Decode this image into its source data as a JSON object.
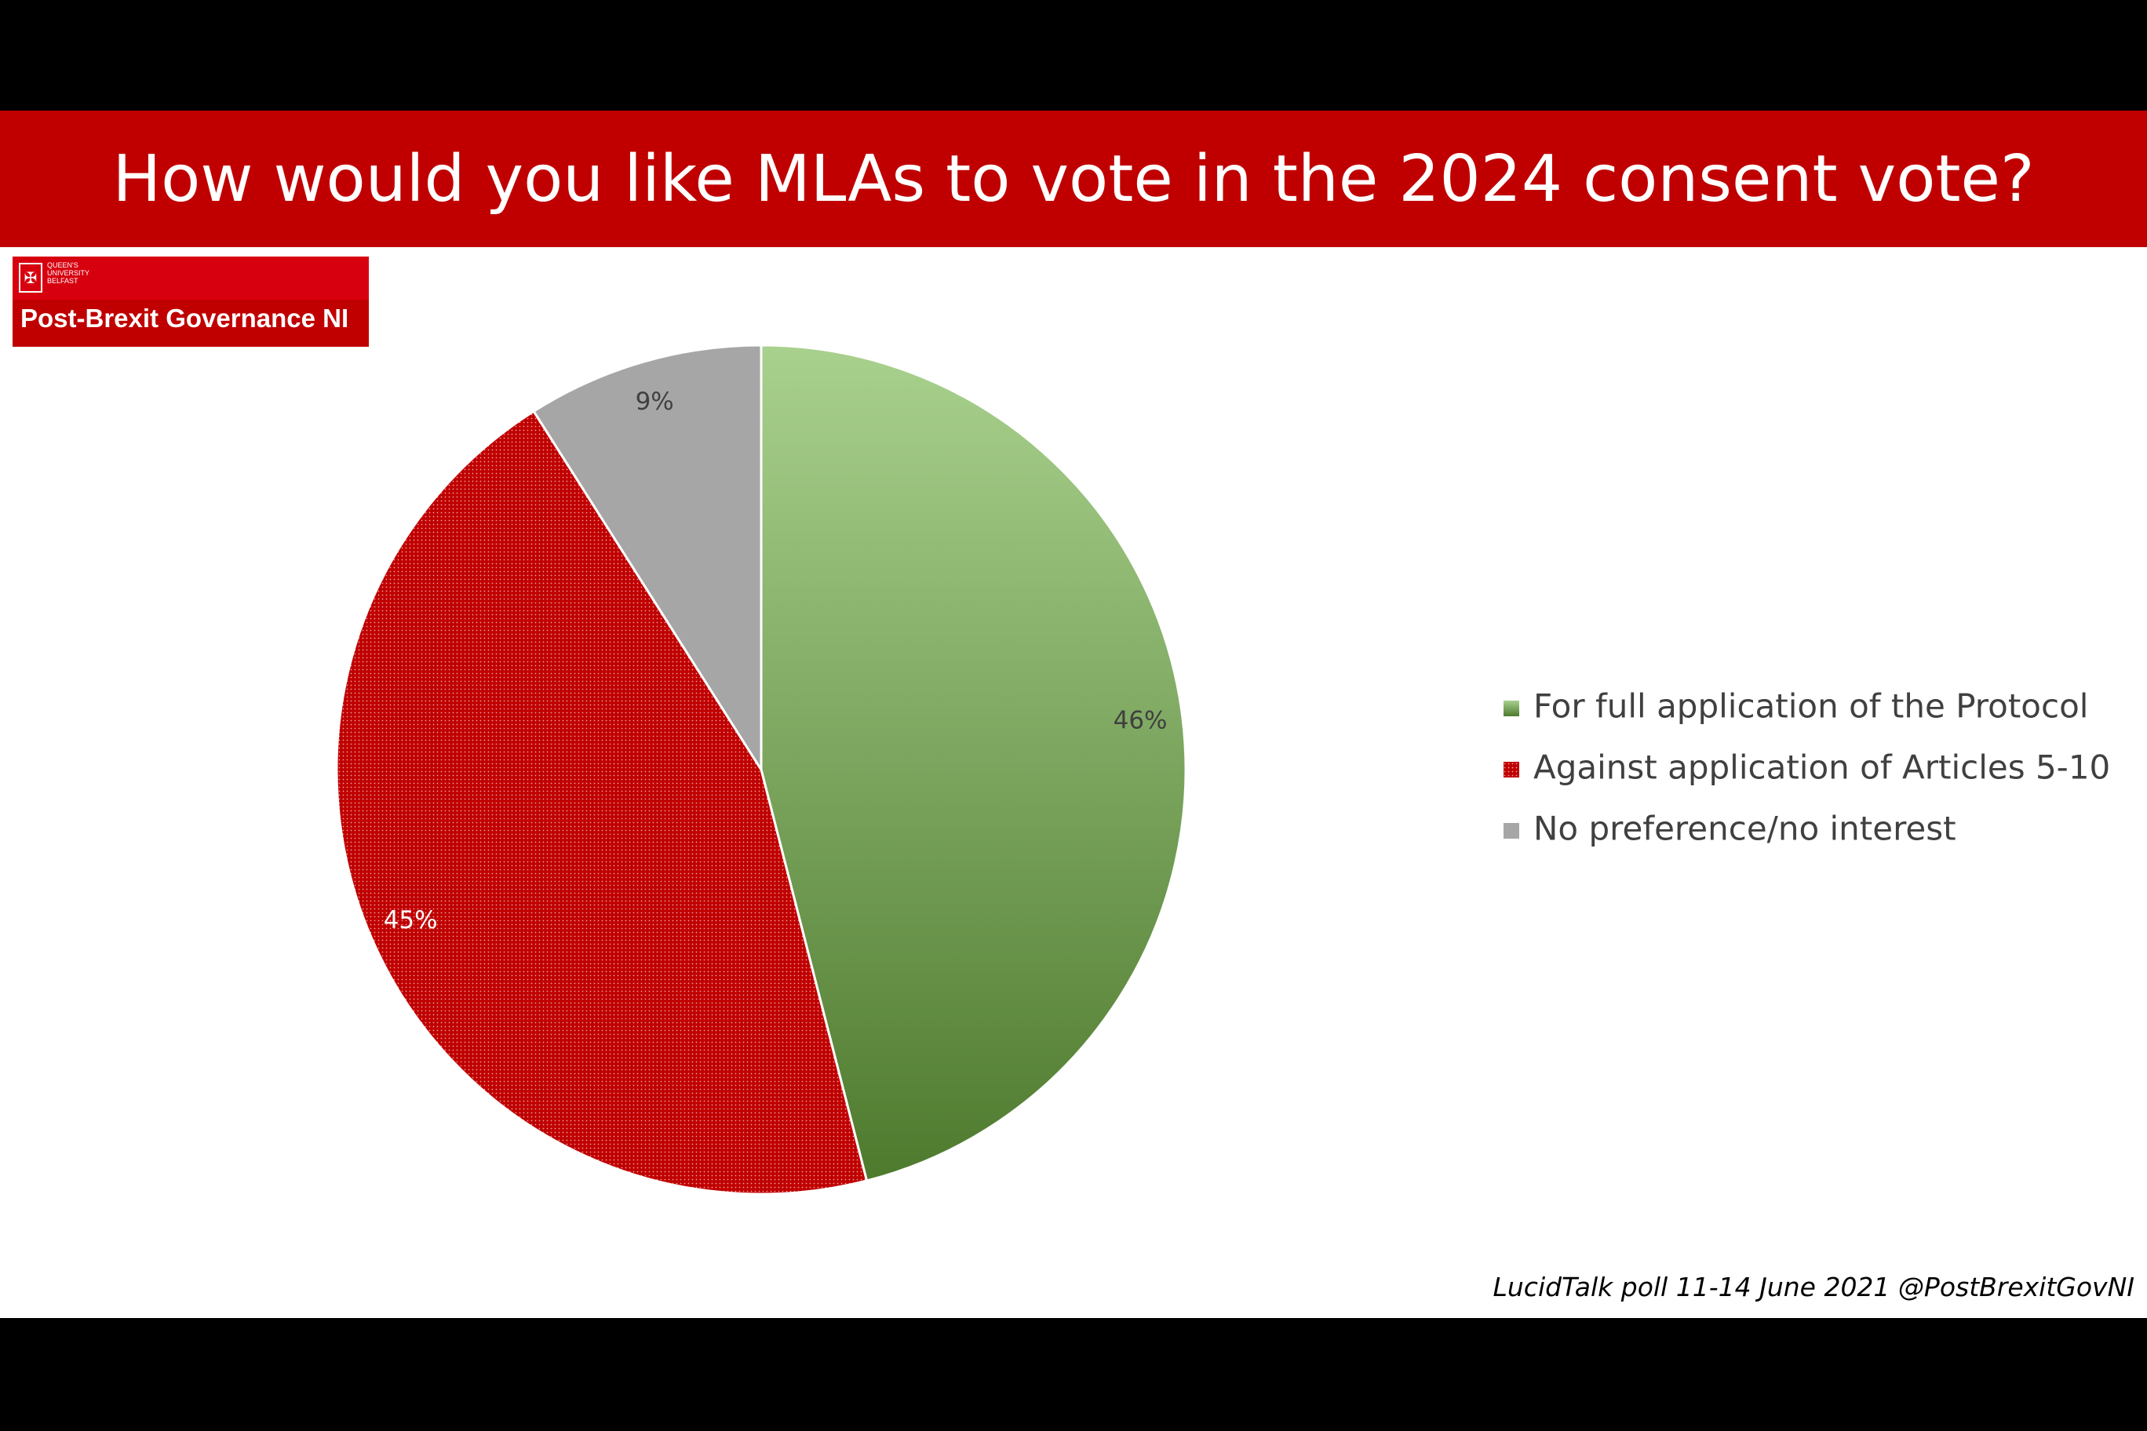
{
  "title": "How would you like MLAs to vote in the 2024 consent vote?",
  "logo": {
    "university": "QUEEN'S\nUNIVERSITY\nBELFAST",
    "name": "Post-Brexit Governance NI"
  },
  "source": "LucidTalk poll 11-14 June 2021 @PostBrexitGovNI",
  "colors": {
    "title_bar": "#c00000",
    "green_light": "#a9d18e",
    "green_dark": "#4e7a2e",
    "red": "#c00000",
    "grey": "#a6a6a6"
  },
  "chart_data": {
    "type": "pie",
    "title": "How would you like MLAs to vote in the 2024 consent vote?",
    "categories": [
      "For full application of the Protocol",
      "Against application of Articles 5-10",
      "No preference/no interest"
    ],
    "values": [
      46,
      45,
      9
    ],
    "labels": [
      "46%",
      "45%",
      "9%"
    ],
    "legend_position": "right"
  }
}
